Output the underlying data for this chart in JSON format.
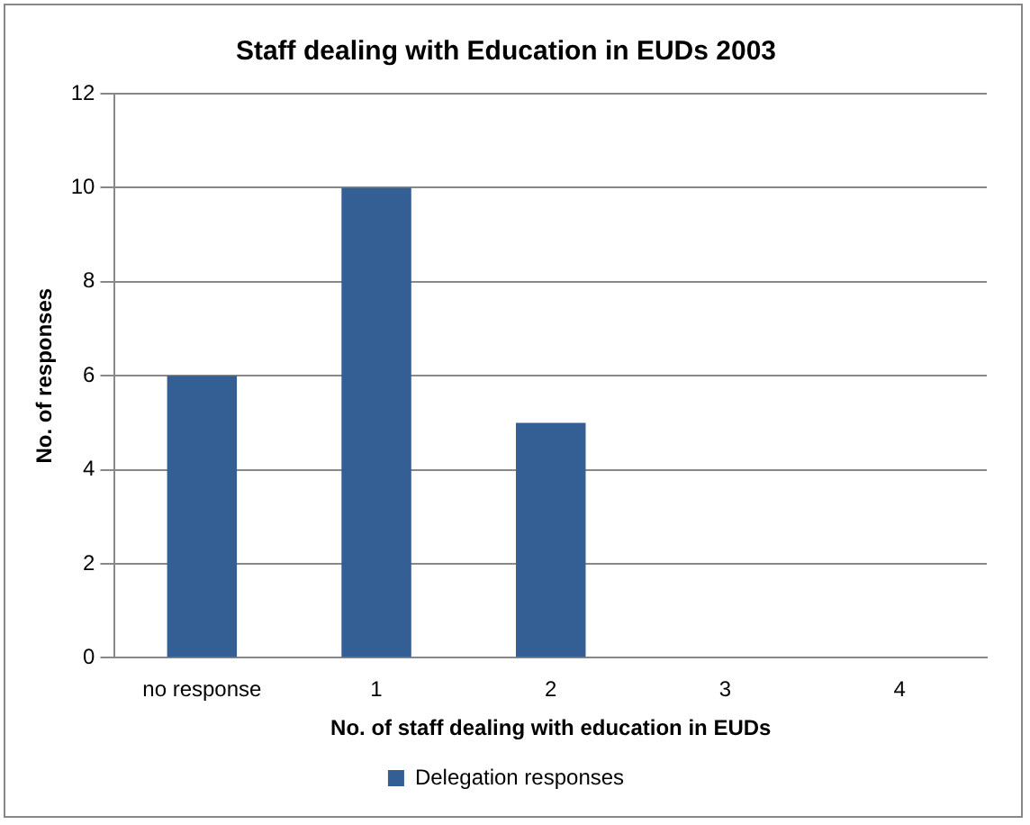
{
  "chart_data": {
    "type": "bar",
    "title": "Staff dealing with Education in EUDs 2003",
    "xlabel": "No. of staff dealing with education in EUDs",
    "ylabel": "No. of responses",
    "categories": [
      "no response",
      "1",
      "2",
      "3",
      "4"
    ],
    "series": [
      {
        "name": "Delegation responses",
        "color": "#335f95",
        "values": [
          6,
          10,
          5,
          0,
          0
        ]
      }
    ],
    "ylim": [
      0,
      12
    ],
    "yticks": [
      0,
      2,
      4,
      6,
      8,
      10,
      12
    ],
    "grid": "y",
    "legend": "bottom"
  }
}
